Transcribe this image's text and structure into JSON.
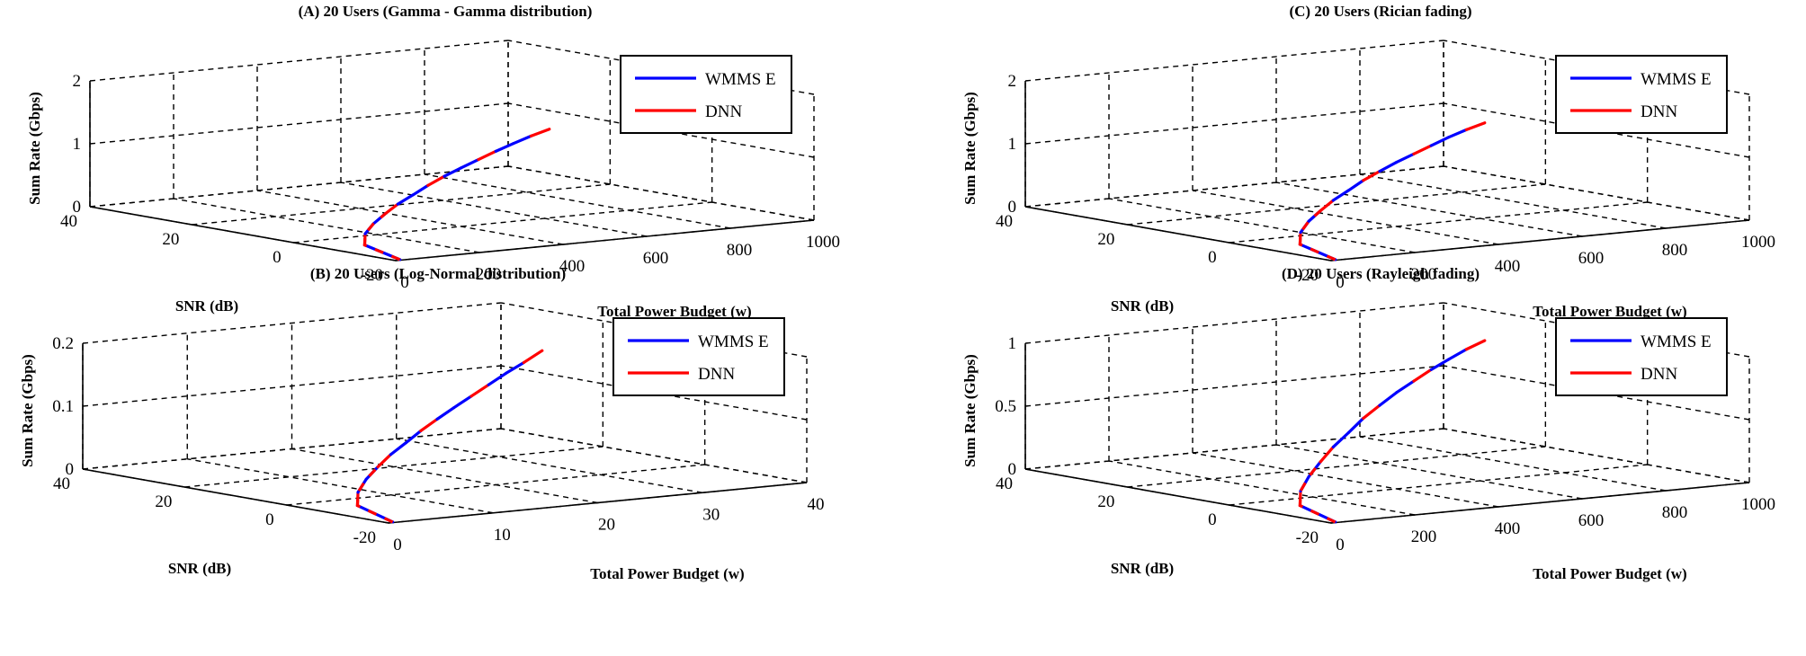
{
  "chart_data": [
    {
      "type": "line3d",
      "title": "(A) 20 Users (Gamma - Gamma distribution)",
      "xlabel": "Total Power Budget (w)",
      "ylabel": "SNR (dB)",
      "zlabel": "Sum Rate (Gbps)",
      "xlim": [
        0,
        1000
      ],
      "ylim": [
        -20,
        40
      ],
      "zlim": [
        0,
        2
      ],
      "xticks": [
        0,
        200,
        400,
        600,
        800,
        1000
      ],
      "yticks": [
        -20,
        0,
        20,
        40
      ],
      "zticks": [
        0,
        1,
        2
      ],
      "grid": true,
      "legend_position": "top-right",
      "series": [
        {
          "name": "WMMS E",
          "color": "#0000ff",
          "x": [
            10,
            50,
            100,
            150,
            200,
            250,
            300,
            350,
            400,
            450,
            500,
            550,
            600,
            650,
            700
          ],
          "y": [
            -20,
            -9.8,
            -5.8,
            -3.3,
            -1.5,
            0.1,
            1.2,
            2.4,
            3.3,
            4.1,
            4.8,
            5.5,
            6.2,
            6.8,
            7.3
          ],
          "z": [
            0.01,
            0.07,
            0.16,
            0.25,
            0.35,
            0.45,
            0.55,
            0.65,
            0.75,
            0.84,
            0.93,
            1.02,
            1.1,
            1.18,
            1.25
          ]
        },
        {
          "name": "DNN",
          "color": "#ff0000",
          "x": [
            10,
            50,
            100,
            150,
            200,
            250,
            300,
            350,
            400,
            450,
            500,
            550,
            600,
            650,
            700
          ],
          "y": [
            -20,
            -9.8,
            -5.8,
            -3.3,
            -1.5,
            0.1,
            1.2,
            2.4,
            3.3,
            4.1,
            4.8,
            5.5,
            6.2,
            6.8,
            7.3
          ],
          "z": [
            0.01,
            0.07,
            0.16,
            0.25,
            0.35,
            0.45,
            0.55,
            0.65,
            0.75,
            0.84,
            0.93,
            1.02,
            1.1,
            1.18,
            1.25
          ]
        }
      ]
    },
    {
      "type": "line3d",
      "title": "(C) 20 Users (Rician fading)",
      "xlabel": "Total Power Budget (w)",
      "ylabel": "SNR (dB)",
      "zlabel": "Sum Rate (Gbps)",
      "xlim": [
        0,
        1000
      ],
      "ylim": [
        -20,
        40
      ],
      "zlim": [
        0,
        2
      ],
      "xticks": [
        0,
        200,
        400,
        600,
        800,
        1000
      ],
      "yticks": [
        -20,
        0,
        20,
        40
      ],
      "zticks": [
        0,
        1,
        2
      ],
      "grid": true,
      "legend_position": "top-right",
      "series": [
        {
          "name": "WMMS E",
          "color": "#0000ff",
          "x": [
            10,
            50,
            100,
            150,
            200,
            250,
            300,
            350,
            400,
            450,
            500,
            550,
            600,
            650,
            700
          ],
          "y": [
            -20,
            -9.8,
            -5.8,
            -3.3,
            -1.5,
            0.1,
            1.2,
            2.4,
            3.3,
            4.1,
            4.8,
            5.5,
            6.2,
            6.8,
            7.3
          ],
          "z": [
            0.01,
            0.08,
            0.18,
            0.29,
            0.4,
            0.51,
            0.62,
            0.73,
            0.83,
            0.93,
            1.02,
            1.11,
            1.2,
            1.28,
            1.35
          ]
        },
        {
          "name": "DNN",
          "color": "#ff0000",
          "x": [
            10,
            50,
            100,
            150,
            200,
            250,
            300,
            350,
            400,
            450,
            500,
            550,
            600,
            650,
            700
          ],
          "y": [
            -20,
            -9.8,
            -5.8,
            -3.3,
            -1.5,
            0.1,
            1.2,
            2.4,
            3.3,
            4.1,
            4.8,
            5.5,
            6.2,
            6.8,
            7.3
          ],
          "z": [
            0.01,
            0.08,
            0.18,
            0.29,
            0.4,
            0.51,
            0.62,
            0.73,
            0.83,
            0.93,
            1.02,
            1.11,
            1.2,
            1.28,
            1.35
          ]
        }
      ]
    },
    {
      "type": "line3d",
      "title": "(B) 20 Users (Log-Normal distribution)",
      "xlabel": "Total Power Budget (w)",
      "ylabel": "SNR (dB)",
      "zlabel": "Sum Rate (Gbps)",
      "xlim": [
        0,
        40
      ],
      "ylim": [
        -20,
        40
      ],
      "zlim": [
        0,
        0.2
      ],
      "xticks": [
        0,
        10,
        20,
        30,
        40
      ],
      "yticks": [
        -20,
        0,
        20,
        40
      ],
      "zticks": [
        0,
        0.1,
        0.2
      ],
      "grid": true,
      "legend_position": "top-right",
      "series": [
        {
          "name": "WMMS E",
          "color": "#0000ff",
          "x": [
            0.4,
            2,
            4,
            6,
            8,
            10,
            12,
            14,
            16,
            18,
            20,
            22,
            24,
            26,
            28
          ],
          "y": [
            -20,
            -9.8,
            -5.8,
            -3.3,
            -1.5,
            0.1,
            1.2,
            2.4,
            3.3,
            4.1,
            4.8,
            5.5,
            6.2,
            6.8,
            7.3
          ],
          "z": [
            0.001,
            0.01,
            0.022,
            0.036,
            0.05,
            0.064,
            0.078,
            0.092,
            0.106,
            0.12,
            0.134,
            0.148,
            0.162,
            0.175,
            0.19
          ]
        },
        {
          "name": "DNN",
          "color": "#ff0000",
          "x": [
            0.4,
            2,
            4,
            6,
            8,
            10,
            12,
            14,
            16,
            18,
            20,
            22,
            24,
            26,
            28
          ],
          "y": [
            -20,
            -9.8,
            -5.8,
            -3.3,
            -1.5,
            0.1,
            1.2,
            2.4,
            3.3,
            4.1,
            4.8,
            5.5,
            6.2,
            6.8,
            7.3
          ],
          "z": [
            0.001,
            0.01,
            0.022,
            0.036,
            0.05,
            0.064,
            0.078,
            0.092,
            0.106,
            0.12,
            0.134,
            0.148,
            0.162,
            0.175,
            0.19
          ]
        }
      ]
    },
    {
      "type": "line3d",
      "title": "(D) 20 Users (Rayleigh fading)",
      "xlabel": "Total Power Budget (w)",
      "ylabel": "SNR (dB)",
      "zlabel": "Sum Rate (Gbps)",
      "xlim": [
        0,
        1000
      ],
      "ylim": [
        -20,
        40
      ],
      "zlim": [
        0,
        1
      ],
      "xticks": [
        0,
        200,
        400,
        600,
        800,
        1000
      ],
      "yticks": [
        -20,
        0,
        20,
        40
      ],
      "zticks": [
        0,
        0.5,
        1
      ],
      "grid": true,
      "legend_position": "top-right",
      "series": [
        {
          "name": "WMMS E",
          "color": "#0000ff",
          "x": [
            10,
            50,
            100,
            150,
            200,
            250,
            300,
            350,
            400,
            450,
            500,
            550,
            600,
            650,
            700
          ],
          "y": [
            -20,
            -9.8,
            -5.8,
            -3.3,
            -1.5,
            0.1,
            1.2,
            2.4,
            3.3,
            4.1,
            4.8,
            5.5,
            6.2,
            6.8,
            7.3
          ],
          "z": [
            0.005,
            0.05,
            0.12,
            0.2,
            0.29,
            0.38,
            0.47,
            0.56,
            0.64,
            0.72,
            0.79,
            0.86,
            0.92,
            0.98,
            1.03
          ]
        },
        {
          "name": "DNN",
          "color": "#ff0000",
          "x": [
            10,
            50,
            100,
            150,
            200,
            250,
            300,
            350,
            400,
            450,
            500,
            550,
            600,
            650,
            700
          ],
          "y": [
            -20,
            -9.8,
            -5.8,
            -3.3,
            -1.5,
            0.1,
            1.2,
            2.4,
            3.3,
            4.1,
            4.8,
            5.5,
            6.2,
            6.8,
            7.3
          ],
          "z": [
            0.005,
            0.05,
            0.12,
            0.2,
            0.29,
            0.38,
            0.47,
            0.56,
            0.64,
            0.72,
            0.79,
            0.86,
            0.92,
            0.98,
            1.03
          ]
        }
      ]
    }
  ]
}
